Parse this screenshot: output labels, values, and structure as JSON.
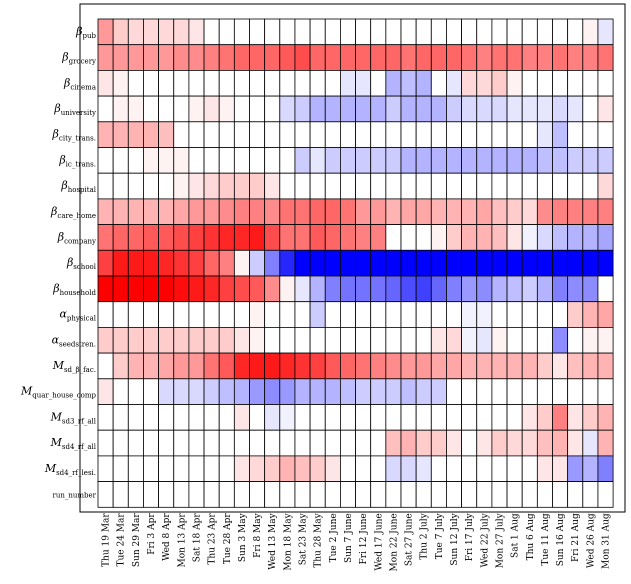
{
  "chart_data": {
    "type": "heatmap",
    "title": "",
    "xlabel": "",
    "ylabel": "",
    "grid": true,
    "colors": {
      "positive": "#ff0000",
      "negative": "#0000ff",
      "zero": "#ffffff",
      "border": "#000000"
    },
    "value_range": [
      -1,
      1
    ],
    "x_tick_labels": [
      "Thu 19 Mar",
      "Tue 24 Mar",
      "Sun 29 Mar",
      "Fri 3 Apr",
      "Wed 8 Apr",
      "Mon 13 Apr",
      "Sat 18 Apr",
      "Thu 23 Apr",
      "Tue 28 Apr",
      "Sun 3 May",
      "Fri 8 May",
      "Wed 13 May",
      "Mon 18 May",
      "Sat 23 May",
      "Thu 28 May",
      "Tue 2 June",
      "Sun 7 June",
      "Fri 12 June",
      "Wed 17 June",
      "Mon 22 June",
      "Sat 27 June",
      "Thu 2 July",
      "Tue 7 July",
      "Sun 12 July",
      "Fri 17 July",
      "Wed 22 July",
      "Mon 27 July",
      "Sat 1 Aug",
      "Thu 6 Aug",
      "Tue 11 Aug",
      "Sun 16 Aug",
      "Fri 21 Aug",
      "Wed 26 Aug",
      "Mon 31 Aug"
    ],
    "rows": [
      {
        "symbol": "β",
        "sub": "pub",
        "values": [
          0.4,
          0.2,
          0.15,
          0.15,
          0.15,
          0.15,
          0.1,
          0,
          0,
          0,
          0,
          0,
          0,
          0,
          0,
          0,
          0,
          0,
          0,
          0,
          0,
          0,
          0,
          0,
          0,
          0,
          0,
          0,
          0,
          0,
          0,
          0,
          0.05,
          -0.1
        ]
      },
      {
        "symbol": "β",
        "sub": "grocery",
        "values": [
          0.4,
          0.4,
          0.4,
          0.4,
          0.4,
          0.45,
          0.45,
          0.5,
          0.55,
          0.6,
          0.6,
          0.6,
          0.65,
          0.7,
          0.6,
          0.6,
          0.6,
          0.6,
          0.6,
          0.6,
          0.55,
          0.6,
          0.6,
          0.6,
          0.55,
          0.5,
          0.55,
          0.55,
          0.5,
          0.5,
          0.55,
          0.5,
          0.5,
          0.55
        ]
      },
      {
        "symbol": "β",
        "sub": "cinema",
        "values": [
          0.1,
          0.05,
          0,
          0,
          0,
          0,
          0,
          0,
          0,
          0,
          0,
          0,
          0,
          0,
          0,
          0,
          -0.1,
          -0.1,
          0,
          -0.3,
          -0.25,
          -0.3,
          0,
          -0.1,
          0.15,
          0.15,
          0.2,
          0.05,
          0,
          0,
          0,
          0,
          0,
          0
        ]
      },
      {
        "symbol": "β",
        "sub": "university",
        "values": [
          0,
          0.05,
          0.05,
          0,
          0,
          0,
          0.05,
          0.1,
          0.05,
          0,
          0,
          0,
          -0.15,
          -0.2,
          -0.3,
          -0.3,
          -0.3,
          -0.3,
          -0.3,
          -0.2,
          -0.3,
          -0.3,
          -0.3,
          -0.2,
          -0.15,
          -0.15,
          -0.15,
          -0.1,
          -0.1,
          -0.1,
          -0.15,
          -0.1,
          0,
          0.1
        ]
      },
      {
        "symbol": "β",
        "sub": "city_trans.",
        "values": [
          0.3,
          0.3,
          0.3,
          0.3,
          0.25,
          0,
          0,
          0,
          0,
          0,
          0,
          0,
          0,
          0,
          0,
          0,
          0,
          0,
          0,
          0,
          0,
          0,
          0,
          0,
          0,
          0,
          0,
          0,
          0,
          -0.1,
          -0.25,
          0,
          0,
          0
        ]
      },
      {
        "symbol": "β",
        "sub": "ic_trans.",
        "values": [
          0,
          0,
          0,
          0.05,
          0.05,
          0.05,
          0,
          0,
          0,
          0,
          0,
          0,
          0,
          -0.2,
          -0.1,
          -0.2,
          -0.2,
          -0.2,
          -0.2,
          -0.2,
          -0.3,
          -0.3,
          -0.3,
          -0.3,
          -0.3,
          -0.3,
          -0.3,
          -0.3,
          -0.3,
          -0.25,
          -0.25,
          -0.2,
          -0.2,
          -0.2
        ]
      },
      {
        "symbol": "β",
        "sub": "hospital",
        "values": [
          0,
          0,
          0,
          0,
          0,
          0.05,
          0.1,
          0.15,
          0.2,
          0.2,
          0.2,
          0.1,
          0,
          0,
          0,
          0,
          0,
          0,
          0,
          0,
          0,
          0,
          0,
          0,
          0,
          0,
          0,
          0,
          0,
          0,
          0,
          0,
          0,
          0.15
        ]
      },
      {
        "symbol": "β",
        "sub": "care_home",
        "values": [
          0.3,
          0.3,
          0.3,
          0.3,
          0.3,
          0.35,
          0.4,
          0.4,
          0.45,
          0.5,
          0.5,
          0.45,
          0.55,
          0.55,
          0.6,
          0.6,
          0.55,
          0.4,
          0.4,
          0.3,
          0.35,
          0.35,
          0.3,
          0.3,
          0.3,
          0.35,
          0.25,
          0.2,
          0.15,
          0.45,
          0.5,
          0.5,
          0.5,
          0.5
        ]
      },
      {
        "symbol": "β",
        "sub": "company",
        "values": [
          0.55,
          0.6,
          0.6,
          0.65,
          0.65,
          0.7,
          0.75,
          0.8,
          0.85,
          0.85,
          0.9,
          0.7,
          0.55,
          0.55,
          0.65,
          0.6,
          0.55,
          0.5,
          0.5,
          0,
          0,
          0,
          0.05,
          0.2,
          0.3,
          0.3,
          0.25,
          0.1,
          -0.05,
          -0.15,
          -0.25,
          -0.3,
          -0.3,
          -0.35
        ]
      },
      {
        "symbol": "β",
        "sub": "school",
        "values": [
          0.75,
          0.9,
          0.9,
          0.9,
          0.85,
          0.8,
          0.75,
          0.6,
          0.5,
          0.05,
          -0.2,
          -0.5,
          -0.85,
          -1,
          -1,
          -1,
          -1,
          -1,
          -1,
          -1,
          -1,
          -1,
          -1,
          -1,
          -1,
          -1,
          -1,
          -1,
          -1,
          -1,
          -1,
          -1,
          -1,
          -1
        ]
      },
      {
        "symbol": "β",
        "sub": "household",
        "values": [
          1,
          1,
          1,
          1,
          1,
          0.95,
          0.9,
          0.85,
          0.75,
          0.7,
          0.65,
          0.45,
          0.05,
          -0.1,
          -0.3,
          -0.5,
          -0.55,
          -0.55,
          -0.55,
          -0.6,
          -0.7,
          -0.75,
          -0.6,
          -0.5,
          -0.4,
          -0.45,
          -0.3,
          -0.25,
          -0.2,
          -0.3,
          -0.5,
          -0.45,
          -0.45,
          0
        ]
      },
      {
        "symbol": "α",
        "sub": "physical",
        "values": [
          0,
          0,
          0,
          0,
          0,
          0,
          0,
          0,
          0,
          0,
          0.05,
          0,
          0,
          0,
          -0.2,
          0,
          0,
          0,
          0,
          0,
          0,
          0,
          0,
          0,
          -0.05,
          -0.05,
          0,
          0,
          0,
          0,
          0,
          0.2,
          0.3,
          0.35
        ]
      },
      {
        "symbol": "α",
        "sub": "seedstren.",
        "values": [
          0.2,
          0.2,
          0.2,
          0.2,
          0.2,
          0.2,
          0.2,
          0.2,
          0.2,
          0.1,
          0.05,
          0,
          0,
          0,
          0,
          0,
          0,
          0,
          0,
          0,
          0,
          0,
          0.1,
          0.15,
          -0.05,
          -0.1,
          0.05,
          0,
          0,
          0,
          -0.45,
          0,
          0.05,
          0.05
        ]
      },
      {
        "symbol": "M",
        "sub": "sd_β_fac.",
        "values": [
          0,
          0.2,
          0.3,
          0.3,
          0.35,
          0.4,
          0.4,
          0.55,
          0.65,
          0.85,
          0.9,
          0.9,
          0.85,
          0.8,
          0.75,
          0.65,
          0.6,
          0.55,
          0.5,
          0.45,
          0.4,
          0.4,
          0.35,
          0.35,
          0.3,
          0.3,
          0.3,
          0.3,
          0.3,
          0.2,
          0.1,
          0.25,
          0.3,
          0.3
        ]
      },
      {
        "symbol": "M",
        "sub": "quar_house_comp",
        "values": [
          0.1,
          0,
          0,
          0,
          -0.15,
          -0.15,
          -0.15,
          -0.2,
          -0.25,
          -0.3,
          -0.4,
          -0.45,
          -0.4,
          -0.3,
          -0.3,
          -0.3,
          -0.25,
          -0.2,
          -0.2,
          -0.2,
          -0.25,
          -0.2,
          -0.2,
          0,
          0,
          0,
          0,
          0,
          0,
          0,
          0,
          0,
          0,
          0
        ]
      },
      {
        "symbol": "M",
        "sub": "sd3_rf_all",
        "values": [
          0,
          0,
          0,
          0,
          0,
          0,
          0,
          0,
          0,
          0.1,
          0,
          -0.1,
          -0.05,
          0,
          0,
          0,
          0,
          0,
          0,
          0,
          0,
          0,
          0,
          0,
          0,
          0,
          0,
          0,
          0.1,
          0.2,
          0.5,
          0.1,
          0.2,
          0.3
        ]
      },
      {
        "symbol": "M",
        "sub": "sd4_rf_all",
        "values": [
          0,
          0,
          0,
          0,
          0,
          0,
          0,
          0,
          0,
          0,
          0,
          0,
          0,
          0,
          0,
          0,
          0,
          0,
          0,
          0.25,
          0.3,
          0.2,
          0.2,
          0.1,
          0,
          0.1,
          0.2,
          0.15,
          0.15,
          0.25,
          0.3,
          0.1,
          -0.1,
          0.3
        ]
      },
      {
        "symbol": "M",
        "sub": "sd4_rf_lesi.",
        "values": [
          0,
          0,
          0,
          0,
          0,
          0,
          0,
          0,
          0,
          0.1,
          0.15,
          0.2,
          0.3,
          0.25,
          0.2,
          0.1,
          0,
          0,
          0,
          -0.15,
          -0.15,
          -0.1,
          0,
          0,
          0,
          0,
          0,
          0,
          0,
          0.1,
          0.1,
          -0.4,
          -0.3,
          -0.5
        ]
      },
      {
        "symbol": "",
        "sub": "",
        "label": "run_number",
        "values": [
          0,
          0,
          0,
          0,
          0,
          0,
          0,
          0,
          0,
          0,
          0,
          0,
          0,
          0,
          0,
          0,
          0,
          0,
          0,
          0,
          0,
          0,
          0,
          0,
          0,
          0,
          0,
          0,
          0,
          0,
          0,
          0,
          0,
          0
        ]
      }
    ]
  }
}
